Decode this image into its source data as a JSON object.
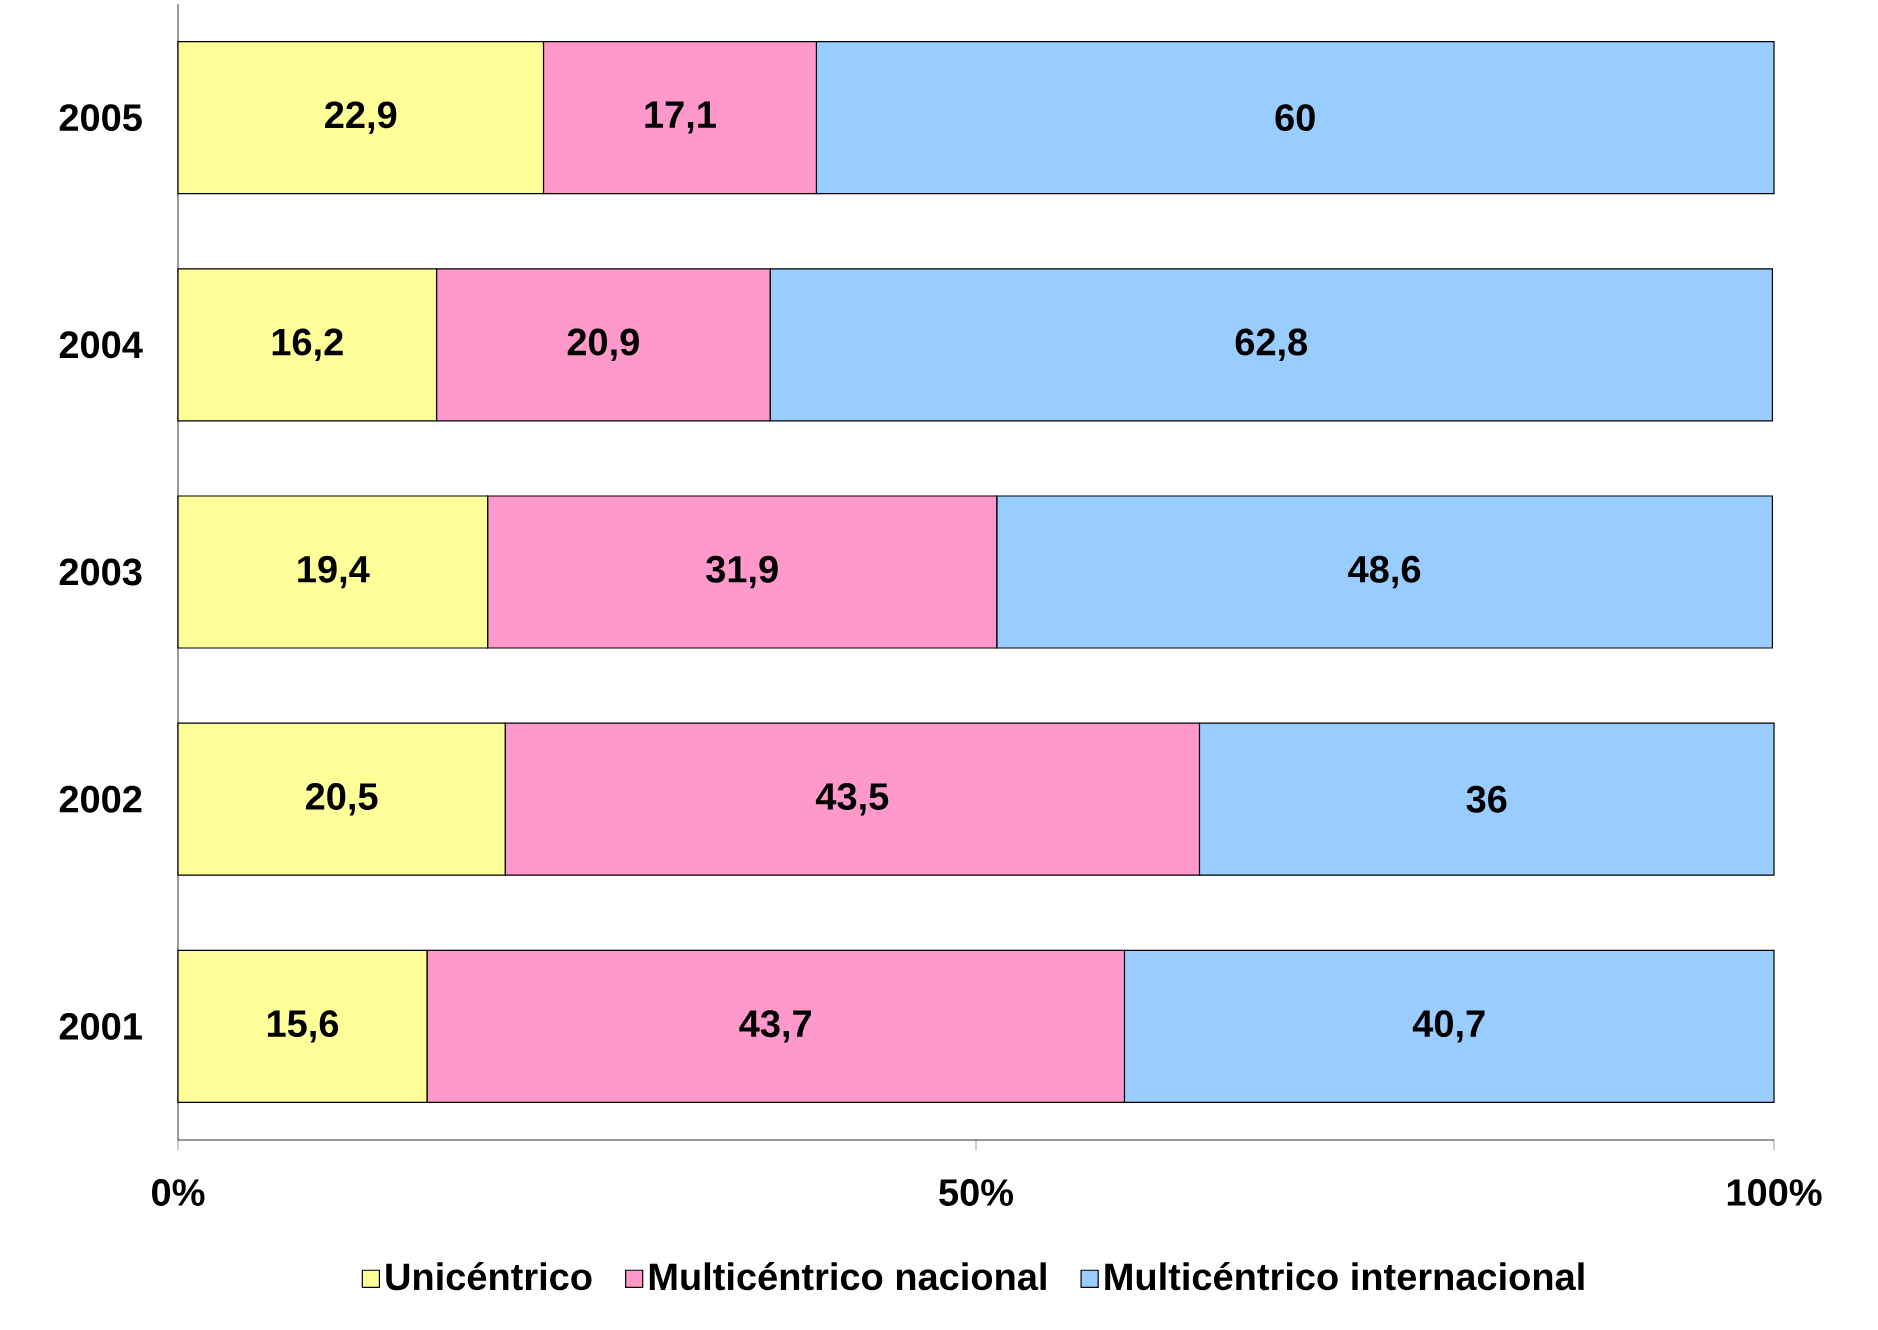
{
  "chart_data": {
    "type": "bar",
    "orientation": "horizontal",
    "stacked": true,
    "categories": [
      "2005",
      "2004",
      "2003",
      "2002",
      "2001"
    ],
    "series": [
      {
        "name": "Unicéntrico",
        "color": "#ffff99",
        "values": [
          22.9,
          16.2,
          19.4,
          20.5,
          15.6
        ],
        "value_labels": [
          "22,9",
          "16,2",
          "19,4",
          "20,5",
          "15,6"
        ]
      },
      {
        "name": "Multicéntrico nacional",
        "color": "#ff99cc",
        "values": [
          17.1,
          20.9,
          31.9,
          43.5,
          43.7
        ],
        "value_labels": [
          "17,1",
          "20,9",
          "31,9",
          "43,5",
          "43,7"
        ]
      },
      {
        "name": "Multicéntrico internacional",
        "color": "#99ccff",
        "values": [
          60,
          62.8,
          48.6,
          36,
          40.7
        ],
        "value_labels": [
          "60",
          "62,8",
          "48,6",
          "36",
          "40,7"
        ]
      }
    ],
    "xlim": [
      0,
      100
    ],
    "xticks": [
      {
        "value": 0,
        "label": "0%"
      },
      {
        "value": 50,
        "label": "50%"
      },
      {
        "value": 100,
        "label": "100%"
      }
    ],
    "legend": "bottom",
    "grid": false
  }
}
